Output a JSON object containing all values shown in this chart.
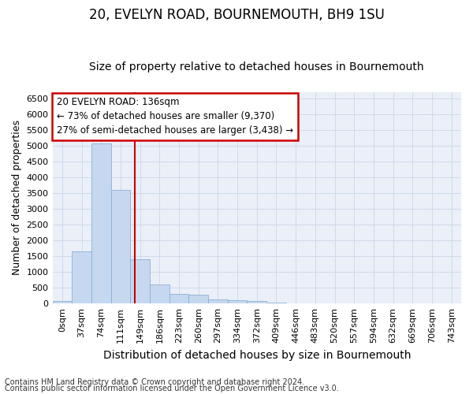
{
  "title_line1": "20, EVELYN ROAD, BOURNEMOUTH, BH9 1SU",
  "title_line2": "Size of property relative to detached houses in Bournemouth",
  "xlabel": "Distribution of detached houses by size in Bournemouth",
  "ylabel": "Number of detached properties",
  "footnote1": "Contains HM Land Registry data © Crown copyright and database right 2024.",
  "footnote2": "Contains public sector information licensed under the Open Government Licence v3.0.",
  "bar_labels": [
    "0sqm",
    "37sqm",
    "74sqm",
    "111sqm",
    "149sqm",
    "186sqm",
    "223sqm",
    "260sqm",
    "297sqm",
    "334sqm",
    "372sqm",
    "409sqm",
    "446sqm",
    "483sqm",
    "520sqm",
    "557sqm",
    "594sqm",
    "632sqm",
    "669sqm",
    "706sqm",
    "743sqm"
  ],
  "bar_values": [
    70,
    1650,
    5070,
    3600,
    1390,
    610,
    300,
    290,
    140,
    110,
    75,
    40,
    15,
    0,
    0,
    0,
    0,
    0,
    0,
    0,
    0
  ],
  "bar_color": "#c5d8f0",
  "bar_edge_color": "#8ab0d4",
  "vline_x_index": 3.73,
  "vline_color": "#cc0000",
  "annotation_text": "20 EVELYN ROAD: 136sqm\n← 73% of detached houses are smaller (9,370)\n27% of semi-detached houses are larger (3,438) →",
  "annotation_box_facecolor": "#ffffff",
  "annotation_box_edgecolor": "#cc0000",
  "ylim_max": 6700,
  "yticks": [
    0,
    500,
    1000,
    1500,
    2000,
    2500,
    3000,
    3500,
    4000,
    4500,
    5000,
    5500,
    6000,
    6500
  ],
  "grid_color": "#d0daea",
  "bg_color": "#eaeff8",
  "title1_fontsize": 12,
  "title2_fontsize": 10,
  "ylabel_fontsize": 9,
  "xlabel_fontsize": 10,
  "xtick_fontsize": 8,
  "ytick_fontsize": 8,
  "footnote_fontsize": 7
}
